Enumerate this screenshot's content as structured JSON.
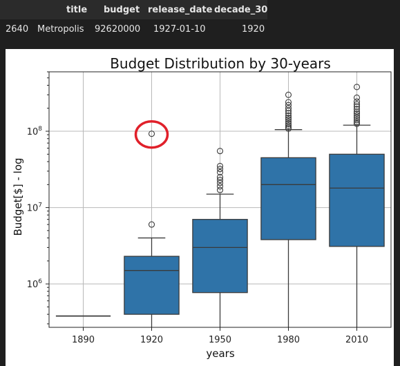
{
  "table": {
    "columns": [
      "",
      "title",
      "budget",
      "release_date",
      "decade_30"
    ],
    "rows": [
      [
        "2640",
        "Metropolis",
        "92620000",
        "1927-01-10",
        "1920"
      ]
    ]
  },
  "chart_data": {
    "type": "box",
    "title": "Budget Distribution by 30-years",
    "xlabel": "years",
    "ylabel": "Budget[$] - log",
    "yscale": "log",
    "ylim": [
      270000,
      600000000
    ],
    "categories": [
      "1890",
      "1920",
      "1950",
      "1980",
      "2010"
    ],
    "ytick_labels": [
      {
        "value": 1000000,
        "base": "10",
        "exp": "6"
      },
      {
        "value": 10000000,
        "base": "10",
        "exp": "7"
      },
      {
        "value": 100000000,
        "base": "10",
        "exp": "8"
      }
    ],
    "grid": true,
    "box_color": "#2f73a8",
    "annotation_color": "#e0202a",
    "annotated_point": {
      "category": "1920",
      "value": 92620000
    },
    "boxes": [
      {
        "category": "1890",
        "whisker_low": 380000,
        "q1": 380000,
        "median": 380000,
        "q3": 380000,
        "whisker_high": 380000,
        "outliers": []
      },
      {
        "category": "1920",
        "whisker_low": 270000,
        "q1": 400000,
        "median": 1500000,
        "q3": 2300000,
        "whisker_high": 4000000,
        "outliers": [
          6000000,
          92620000
        ]
      },
      {
        "category": "1950",
        "whisker_low": 270000,
        "q1": 770000,
        "median": 3000000,
        "q3": 7000000,
        "whisker_high": 15000000,
        "outliers": [
          17000000,
          19000000,
          21000000,
          23000000,
          25000000,
          29000000,
          32000000,
          35000000,
          55000000
        ]
      },
      {
        "category": "1980",
        "whisker_low": 270000,
        "q1": 3800000,
        "median": 20000000,
        "q3": 45000000,
        "whisker_high": 105000000,
        "outliers": [
          108000000,
          112000000,
          118000000,
          125000000,
          133000000,
          142000000,
          150000000,
          160000000,
          172000000,
          185000000,
          200000000,
          220000000,
          240000000,
          300000000
        ]
      },
      {
        "category": "2010",
        "whisker_low": 270000,
        "q1": 3100000,
        "median": 18000000,
        "q3": 50000000,
        "whisker_high": 120000000,
        "outliers": [
          125000000,
          132000000,
          140000000,
          150000000,
          160000000,
          170000000,
          180000000,
          195000000,
          210000000,
          225000000,
          245000000,
          275000000,
          380000000
        ]
      }
    ]
  }
}
